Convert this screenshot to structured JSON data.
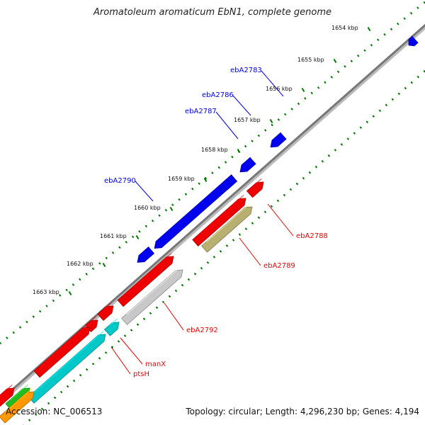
{
  "title": "Aromatoleum aromaticum EbN1, complete genome",
  "accession": "Accession: NC_006513",
  "summary": "Topology: circular; Length: 4,296,230 bp; Genes: 4,194",
  "colors": {
    "forward_gene": "#0000ee",
    "reverse_gene": "#ee0000",
    "backbone": "#888888",
    "tick": "#007700",
    "cyan_feature": "#00c8c8",
    "olive_feature": "#b8b070",
    "grey_feature": "#c8c8c8",
    "green_feature": "#22bb22",
    "orange_feature": "#ff9900"
  },
  "scale_ticks": [
    {
      "label": "1654 kbp"
    },
    {
      "label": "1655 kbp"
    },
    {
      "label": "1656 kbp"
    },
    {
      "label": "1657 kbp"
    },
    {
      "label": "1658 kbp"
    },
    {
      "label": "1659 kbp"
    },
    {
      "label": "1660 kbp"
    },
    {
      "label": "1661 kbp"
    },
    {
      "label": "1662 kbp"
    },
    {
      "label": "1663 kbp"
    }
  ],
  "gene_labels_forward": [
    {
      "name": "ebA2783"
    },
    {
      "name": "ebA2786"
    },
    {
      "name": "ebA2787"
    },
    {
      "name": "ebA2790"
    }
  ],
  "gene_labels_reverse": [
    {
      "name": "ebA2788"
    },
    {
      "name": "ebA2789"
    },
    {
      "name": "ebA2792"
    },
    {
      "name": "manX"
    },
    {
      "name": "ptsH"
    }
  ]
}
